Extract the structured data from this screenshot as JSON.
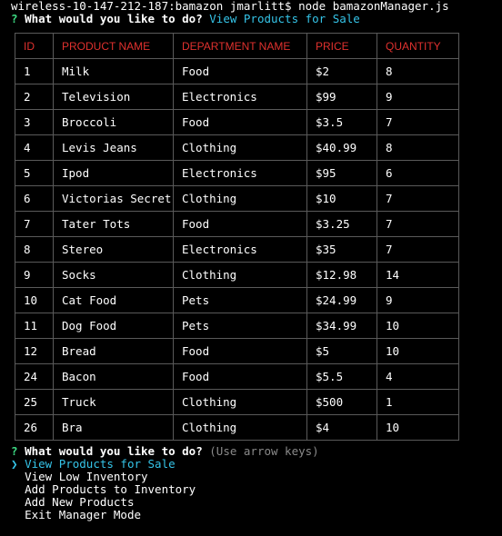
{
  "terminal": {
    "command_prompt": "wireless-10-147-212-187:bamazon jmarlitt$ node bamazonManager.js",
    "first_question": {
      "marker": "?",
      "text": "What would you like to do?",
      "answer": "View Products for Sale"
    },
    "table": {
      "headers": [
        "ID",
        "PRODUCT NAME",
        "DEPARTMENT NAME",
        "PRICE",
        "QUANTITY"
      ],
      "rows": [
        [
          "1",
          "Milk",
          "Food",
          "$2",
          "8"
        ],
        [
          "2",
          "Television",
          "Electronics",
          "$99",
          "9"
        ],
        [
          "3",
          "Broccoli",
          "Food",
          "$3.5",
          "7"
        ],
        [
          "4",
          "Levis Jeans",
          "Clothing",
          "$40.99",
          "8"
        ],
        [
          "5",
          "Ipod",
          "Electronics",
          "$95",
          "6"
        ],
        [
          "6",
          "Victorias Secret",
          "Clothing",
          "$10",
          "7"
        ],
        [
          "7",
          "Tater Tots",
          "Food",
          "$3.25",
          "7"
        ],
        [
          "8",
          "Stereo",
          "Electronics",
          "$35",
          "7"
        ],
        [
          "9",
          "Socks",
          "Clothing",
          "$12.98",
          "14"
        ],
        [
          "10",
          "Cat Food",
          "Pets",
          "$24.99",
          "9"
        ],
        [
          "11",
          "Dog Food",
          "Pets",
          "$34.99",
          "10"
        ],
        [
          "12",
          "Bread",
          "Food",
          "$5",
          "10"
        ],
        [
          "24",
          "Bacon",
          "Food",
          "$5.5",
          "4"
        ],
        [
          "25",
          "Truck",
          "Clothing",
          "$500",
          "1"
        ],
        [
          "26",
          "Bra",
          "Clothing",
          "$4",
          "10"
        ]
      ]
    },
    "second_question": {
      "marker": "?",
      "text": "What would you like to do?",
      "hint": "(Use arrow keys)"
    },
    "menu": {
      "pointer": "❯",
      "items": [
        "View Products for Sale",
        "View Low Inventory",
        "Add Products to Inventory",
        "Add New Products",
        "Exit Manager Mode"
      ]
    },
    "colors": {
      "background": "#000000",
      "header_text": "#e0312e",
      "question_marker": "#3ddc84",
      "highlight": "#35c4e8",
      "hint": "#8a8a8a"
    }
  }
}
